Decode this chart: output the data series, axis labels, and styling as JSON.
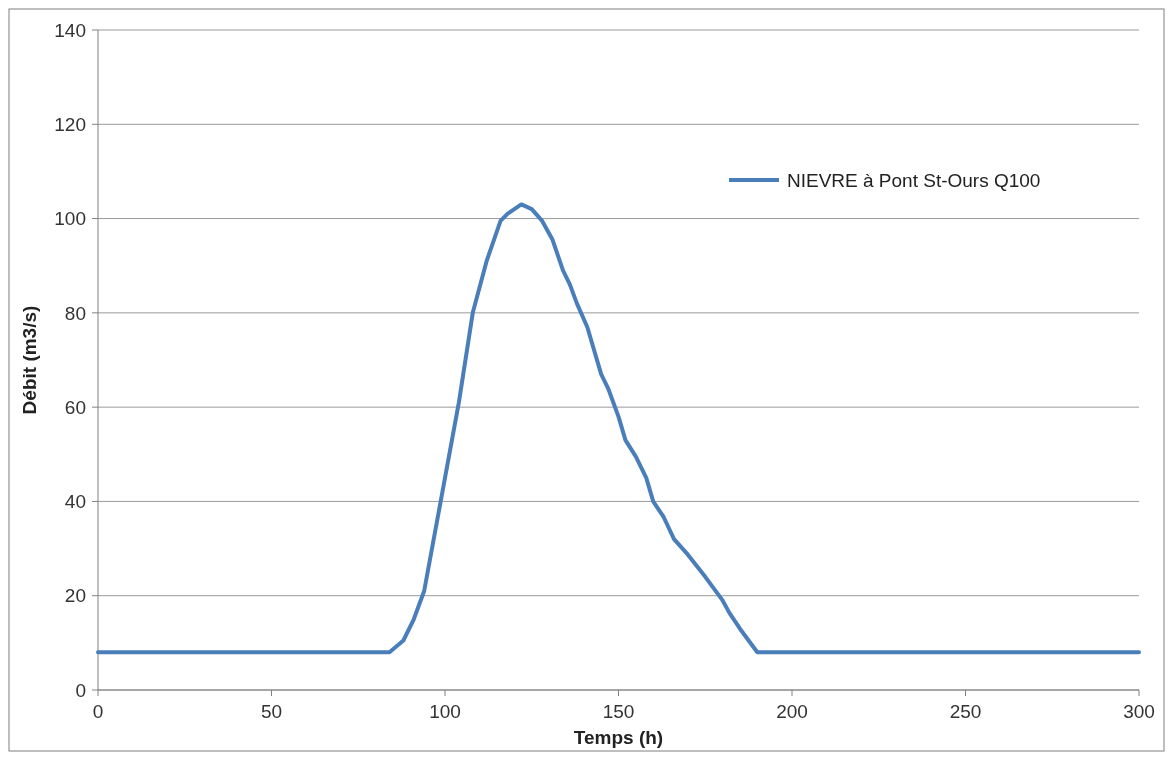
{
  "chart_data": {
    "type": "line",
    "xlabel": "Temps (h)",
    "ylabel": "Débit (m3/s)",
    "xlim": [
      0,
      300
    ],
    "xticks": [
      0,
      50,
      100,
      150,
      200,
      250,
      300
    ],
    "ylim": [
      0,
      140
    ],
    "yticks": [
      0,
      20,
      40,
      60,
      80,
      100,
      120,
      140
    ],
    "grid": "y",
    "legend": "top right",
    "line_style": "solid",
    "marker": "none",
    "series": [
      {
        "name": "NIEVRE à Pont St-Ours Q100",
        "color": "#4a7ebb",
        "x": [
          0,
          84,
          88,
          91,
          94,
          97,
          100,
          104,
          108,
          112,
          116,
          118,
          122,
          125,
          128,
          131,
          134,
          136,
          138,
          141,
          145,
          147,
          150,
          152,
          155,
          158,
          160,
          163,
          166,
          170,
          175,
          180,
          182,
          185,
          190,
          300
        ],
        "values": [
          8,
          8,
          10.5,
          15,
          21,
          33,
          45,
          61,
          80,
          91,
          99.5,
          101,
          103,
          102,
          99.5,
          95.5,
          89,
          86,
          82,
          77,
          67,
          64,
          58,
          53,
          49.5,
          45,
          40,
          36.7,
          32,
          28.7,
          24,
          19,
          16.3,
          13,
          8,
          8
        ]
      }
    ]
  }
}
